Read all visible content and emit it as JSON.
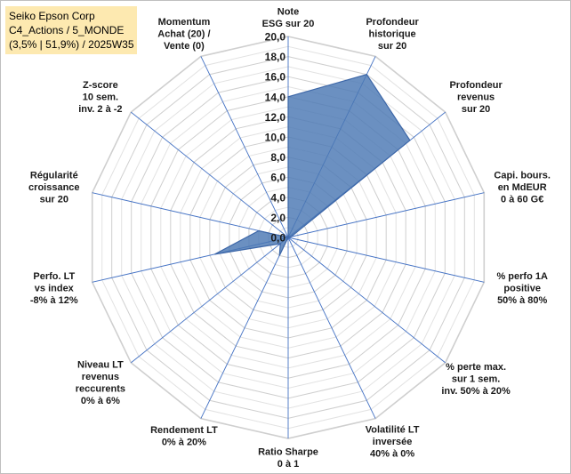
{
  "title_box": {
    "line1": "Seiko Epson Corp",
    "line2": "C4_Actions / 5_MONDE",
    "line3": "(3,5% | 51,9%) / 2025W35"
  },
  "colors": {
    "fill": "#4a77b3",
    "stroke": "#3d67a8",
    "grid": "#d0d0d0",
    "spoke": "#4472c4",
    "title_bg": "#fde9b0"
  },
  "chart_data": {
    "type": "radar",
    "title": "",
    "rmin": 0,
    "rmax": 20,
    "tick_step": 2,
    "tick_labels": [
      "0,0",
      "2,0",
      "4,0",
      "6,0",
      "8,0",
      "10,0",
      "12,0",
      "14,0",
      "16,0",
      "18,0",
      "20,0"
    ],
    "grid": true,
    "axes": [
      {
        "label": [
          "Note",
          "ESG sur 20"
        ],
        "value": 14
      },
      {
        "label": [
          "Profondeur",
          "historique",
          "sur 20"
        ],
        "value": 18
      },
      {
        "label": [
          "Profondeur",
          "revenus",
          "sur 20"
        ],
        "value": 15.5
      },
      {
        "label": [
          "Capi. bours.",
          "en MdEUR",
          "0 à 60 G€"
        ],
        "value": 0.3
      },
      {
        "label": [
          "% perfo 1A",
          "positive",
          "50% à 80%"
        ],
        "value": 0
      },
      {
        "label": [
          "% perte max.",
          "sur 1 sem.",
          "inv. 50% à 20%"
        ],
        "value": 0
      },
      {
        "label": [
          "Volatilité LT",
          "inversée",
          "40% à 0%"
        ],
        "value": 0
      },
      {
        "label": [
          "Ratio Sharpe",
          "0 à 1"
        ],
        "value": 0
      },
      {
        "label": [
          "Rendement LT",
          "0% à 20%"
        ],
        "value": 2
      },
      {
        "label": [
          "Niveau LT",
          "revenus",
          "reccurents",
          "0% à 6%"
        ],
        "value": 1
      },
      {
        "label": [
          "Perfo. LT",
          "vs index",
          "-8% à 12%"
        ],
        "value": 7.5
      },
      {
        "label": [
          "Régularité",
          "croissance",
          "sur 20"
        ],
        "value": 3
      },
      {
        "label": [
          "Z-score",
          "10 sem.",
          "inv. 2 à -2"
        ],
        "value": 0
      },
      {
        "label": [
          "Momentum",
          "Achat (20) /",
          "Vente (0)"
        ],
        "value": 0
      }
    ]
  }
}
